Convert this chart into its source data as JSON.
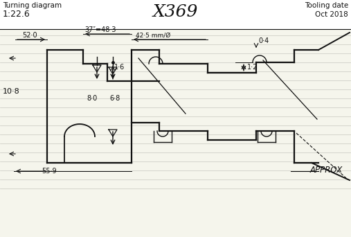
{
  "title_left": "Turning diagram",
  "scale": "1:22.6",
  "title_center": "X369",
  "title_right": "Tooling date\nOct 2018",
  "approx_label": "APPROX",
  "dim_52": "52·0",
  "dim_37_483": "37″=48·3",
  "dim_425": "42·5 mm/Ø",
  "dim_04": "0·4",
  "dim_12": "1·2",
  "dim_16": "1·6",
  "dim_108": "10·8",
  "dim_80": "8·0",
  "dim_68": "6·8",
  "dim_559": "55·9",
  "bg": "#f5f5ec",
  "lc": "#111111",
  "ruled": "#c8c8c0"
}
